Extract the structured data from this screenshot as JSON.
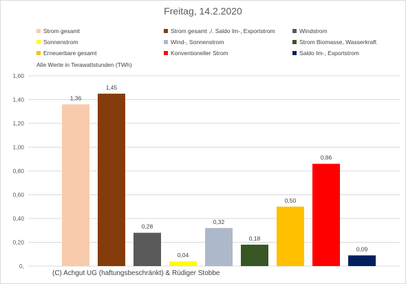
{
  "chart_data": {
    "type": "bar",
    "title": "Freitag, 14.2.2020",
    "note": "Alle Werte in Terawattstunden (TWh)",
    "copyright": "(C) Achgut UG (haftungsbeschränkt) & Rüdiger Stobbe",
    "ylim": [
      0,
      1.6
    ],
    "y_ticks": [
      "0,",
      "0,20",
      "0,40",
      "0,60",
      "0,80",
      "1,00",
      "1,20",
      "1,40",
      "1,60"
    ],
    "y_tick_values": [
      0,
      0.2,
      0.4,
      0.6,
      0.8,
      1.0,
      1.2,
      1.4,
      1.6
    ],
    "grid": true,
    "legend_position": "top",
    "series": [
      {
        "name": "Strom gesamt",
        "value": 1.36,
        "label": "1,36",
        "color": "#f8cbad"
      },
      {
        "name": "Strom gesamt ./. Saldo Im-, Exportstrom",
        "value": 1.45,
        "label": "1,45",
        "color": "#843c0c"
      },
      {
        "name": "Windstrom",
        "value": 0.28,
        "label": "0,28",
        "color": "#595959"
      },
      {
        "name": "Sonnenstrom",
        "value": 0.04,
        "label": "0,04",
        "color": "#ffff00"
      },
      {
        "name": "Wind-, Sonnenstrom",
        "value": 0.32,
        "label": "0,32",
        "color": "#adb9ca"
      },
      {
        "name": "Strom Biomasse, Wasserkraft",
        "value": 0.18,
        "label": "0,18",
        "color": "#375623"
      },
      {
        "name": "Erneuerbare gesamt",
        "value": 0.5,
        "label": "0,50",
        "color": "#ffc000"
      },
      {
        "name": "Konventioneller Strom",
        "value": 0.86,
        "label": "0,86",
        "color": "#ff0000"
      },
      {
        "name": "Saldo Im-, Exportstrom",
        "value": 0.09,
        "label": "0,09",
        "color": "#002060"
      }
    ]
  }
}
